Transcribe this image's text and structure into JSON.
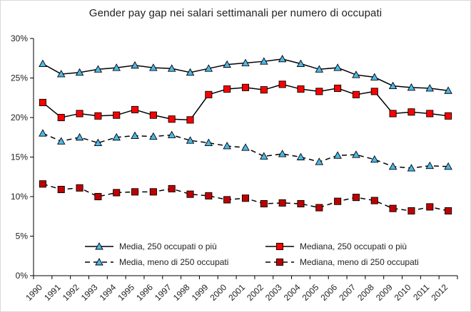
{
  "chart_data": {
    "type": "line",
    "title": "Gender pay gap nei salari settimanali per numero di occupati",
    "x": [
      "1990",
      "1991",
      "1992",
      "1993",
      "1994",
      "1995",
      "1996",
      "1997",
      "1998",
      "1999",
      "2000",
      "2001",
      "2002",
      "2003",
      "2004",
      "2005",
      "2006",
      "2007",
      "2008",
      "2009",
      "2010",
      "2011",
      "2012"
    ],
    "y_ticks": [
      "0%",
      "5%",
      "10%",
      "15%",
      "20%",
      "25%",
      "30%"
    ],
    "ylim": [
      0,
      30
    ],
    "legend_position": "bottom",
    "grid": false,
    "series": [
      {
        "name": "Media, 250 occupati o più",
        "marker": "triangle",
        "line": "solid",
        "marker_color": "#4db8e8",
        "values": [
          26.8,
          25.5,
          25.7,
          26.1,
          26.3,
          26.6,
          26.3,
          26.2,
          25.7,
          26.2,
          26.7,
          26.9,
          27.1,
          27.4,
          26.8,
          26.1,
          26.3,
          25.4,
          25.1,
          24.0,
          23.8,
          23.7,
          23.4
        ]
      },
      {
        "name": "Mediana, 250 occupati o più",
        "marker": "square",
        "line": "solid",
        "marker_color": "#ff0000",
        "values": [
          21.9,
          20.0,
          20.5,
          20.2,
          20.3,
          21.0,
          20.3,
          19.8,
          19.7,
          22.9,
          23.6,
          23.8,
          23.5,
          24.2,
          23.6,
          23.3,
          23.7,
          22.9,
          23.3,
          20.5,
          20.7,
          20.5,
          20.2
        ]
      },
      {
        "name": "Media, meno di 250 occupati",
        "marker": "triangle",
        "line": "dashed",
        "marker_color": "#4db8e8",
        "values": [
          18.0,
          17.0,
          17.5,
          16.8,
          17.5,
          17.7,
          17.6,
          17.8,
          17.1,
          16.8,
          16.4,
          16.2,
          15.1,
          15.4,
          15.0,
          14.4,
          15.2,
          15.3,
          14.7,
          13.8,
          13.6,
          13.9,
          13.8
        ]
      },
      {
        "name": "Mediana, meno di 250 occupati",
        "marker": "square",
        "line": "dashed",
        "marker_color": "#c00000",
        "values": [
          11.6,
          10.9,
          11.1,
          10.0,
          10.5,
          10.6,
          10.6,
          11.0,
          10.3,
          10.1,
          9.6,
          9.8,
          9.1,
          9.2,
          9.1,
          8.6,
          9.4,
          9.9,
          9.5,
          8.5,
          8.2,
          8.7,
          8.2
        ]
      }
    ]
  }
}
